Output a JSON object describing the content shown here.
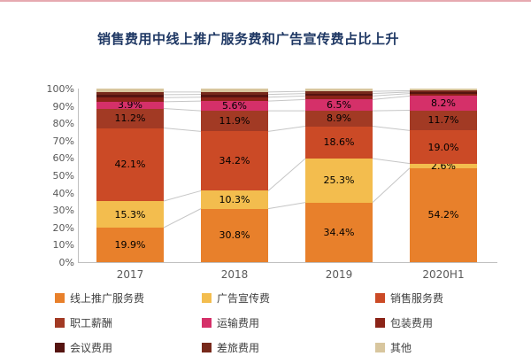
{
  "page": {
    "title": "销售费用中线上推广服务费和广告宣传费占比上升"
  },
  "chart_data": {
    "type": "bar",
    "subtype": "stacked-percent",
    "title": "销售费用中线上推广服务费和广告宣传费占比上升",
    "categories": [
      "2017",
      "2018",
      "2019",
      "2020H1"
    ],
    "series": [
      {
        "name": "线上推广服务费",
        "color": "#E8802B",
        "values": [
          19.9,
          30.8,
          34.4,
          54.2
        ],
        "label_visible": true
      },
      {
        "name": "广告宣传费",
        "color": "#F3BD4E",
        "values": [
          15.3,
          10.3,
          25.3,
          2.6
        ],
        "label_visible": true
      },
      {
        "name": "销售服务费",
        "color": "#CB4A26",
        "values": [
          42.1,
          34.2,
          18.6,
          19.0
        ],
        "label_visible": true
      },
      {
        "name": "职工薪酬",
        "color": "#A23A24",
        "values": [
          11.2,
          11.9,
          8.9,
          11.7
        ],
        "label_visible": true
      },
      {
        "name": "运输费用",
        "color": "#D53069",
        "values": [
          3.9,
          5.6,
          6.5,
          8.2
        ],
        "label_visible": true
      },
      {
        "name": "包装费用",
        "color": "#8B2418",
        "values": [
          2.4,
          2.2,
          2.0,
          1.4
        ],
        "label_visible": false
      },
      {
        "name": "会议费用",
        "color": "#551410",
        "values": [
          1.7,
          1.6,
          1.4,
          0.9
        ],
        "label_visible": false
      },
      {
        "name": "差旅费用",
        "color": "#77291B",
        "values": [
          1.5,
          1.4,
          1.3,
          0.8
        ],
        "label_visible": false
      },
      {
        "name": "其他",
        "color": "#D8C69E",
        "values": [
          2.0,
          2.0,
          1.6,
          1.2
        ],
        "label_visible": false
      }
    ],
    "ylim": [
      0,
      100
    ],
    "yticks": [
      "0%",
      "10%",
      "20%",
      "30%",
      "40%",
      "50%",
      "60%",
      "70%",
      "80%",
      "90%",
      "100%"
    ],
    "grid": false,
    "legend_position": "bottom",
    "connector_lines": true
  }
}
